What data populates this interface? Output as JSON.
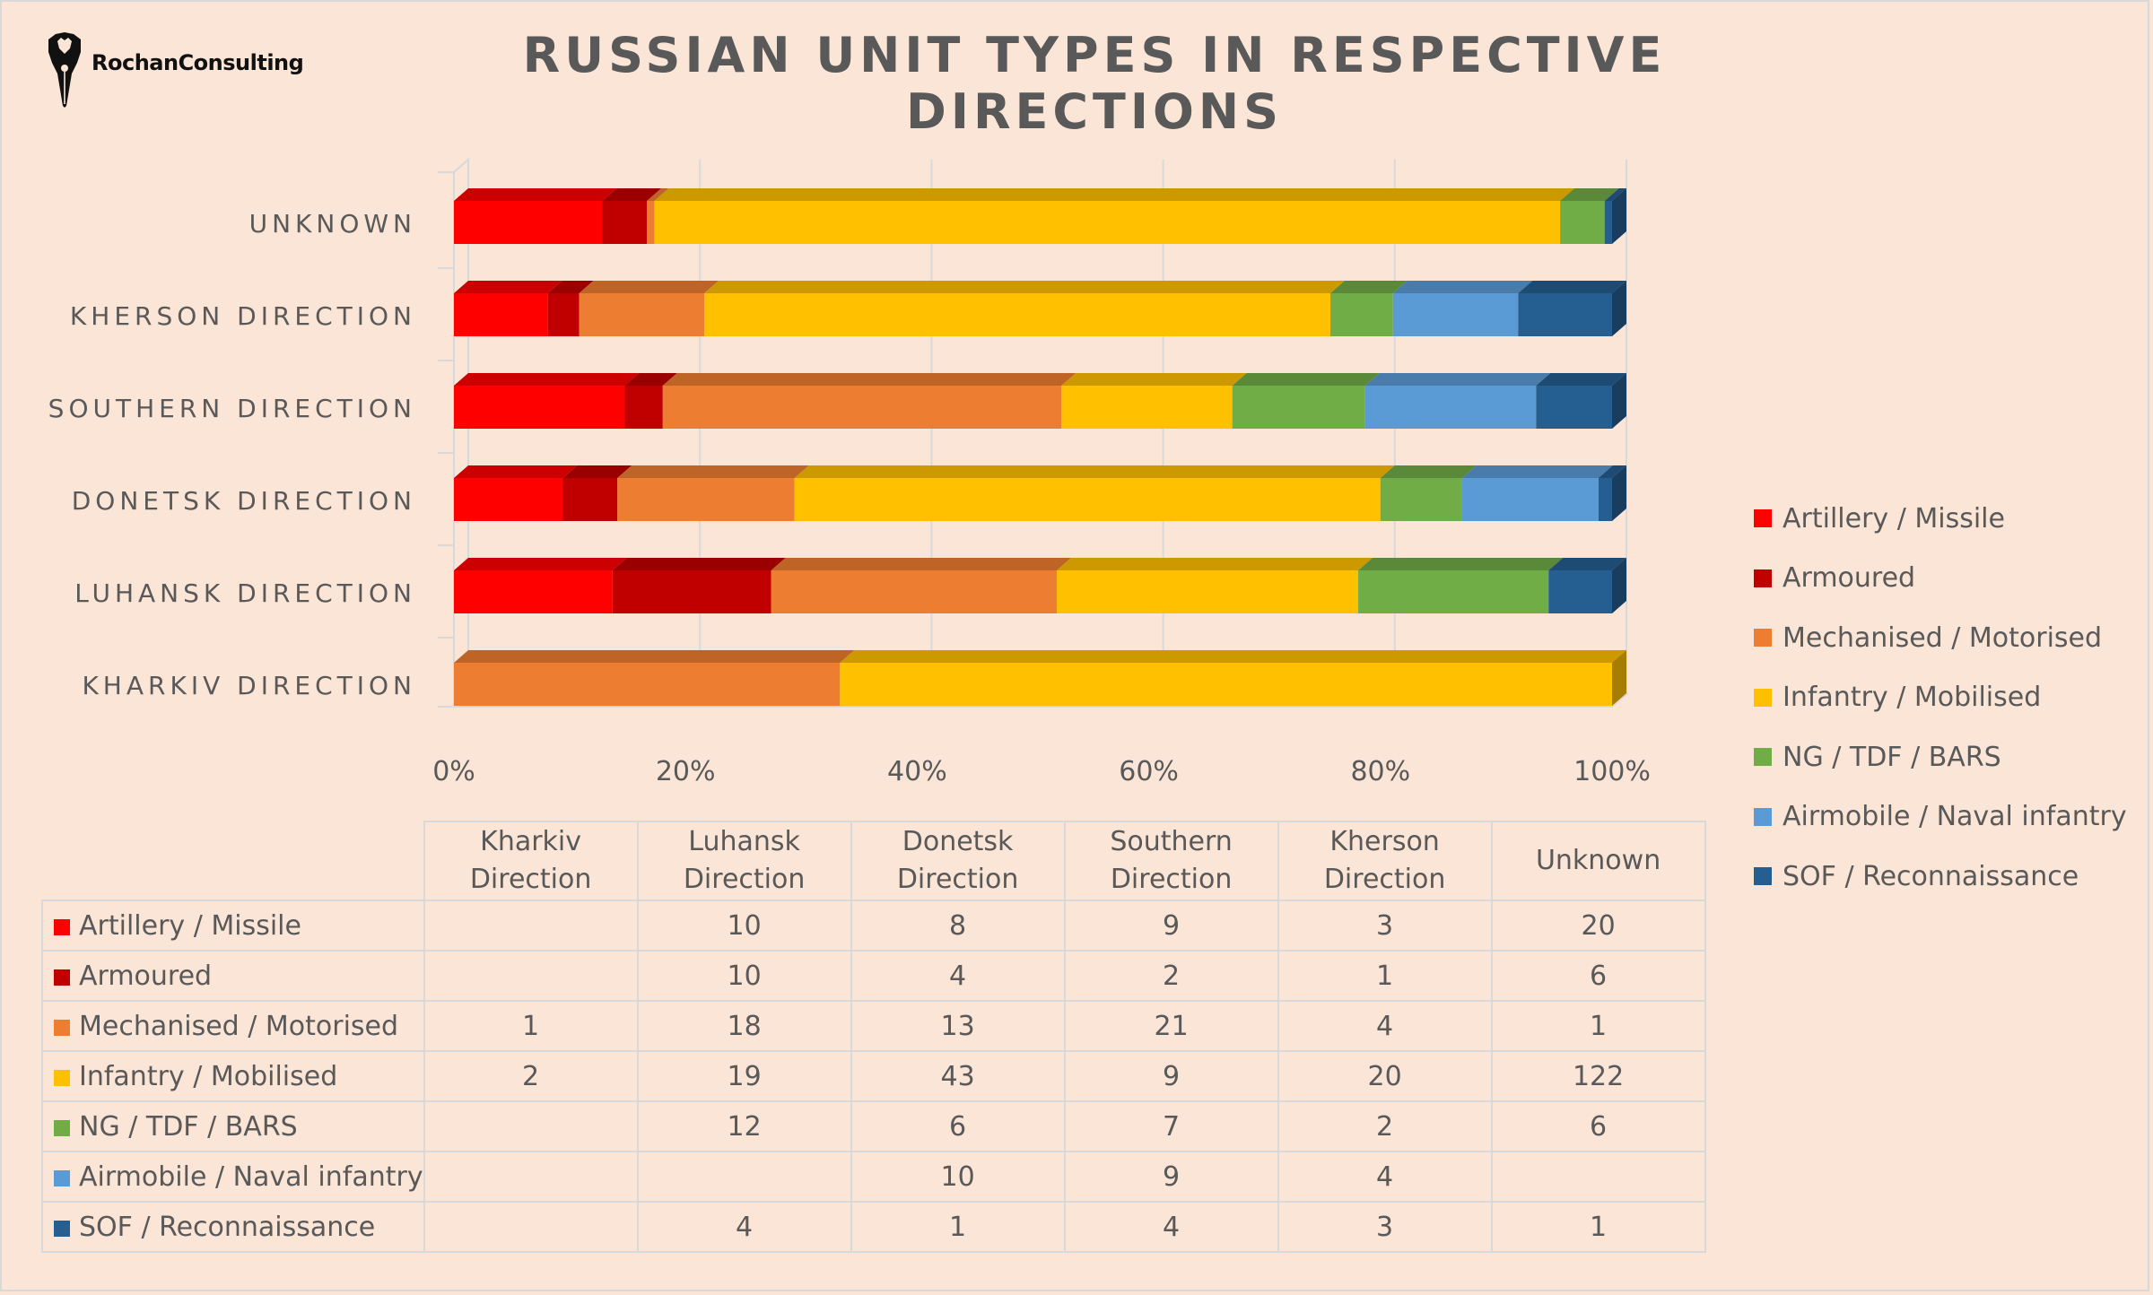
{
  "logo": {
    "text": "RochanConsulting"
  },
  "title": "RUSSIAN UNIT TYPES IN RESPECTIVE DIRECTIONS",
  "series_meta": [
    {
      "name": "Artillery / Missile",
      "color": "#ff0000"
    },
    {
      "name": "Armoured",
      "color": "#c00000"
    },
    {
      "name": "Mechanised / Motorised",
      "color": "#ed7d31"
    },
    {
      "name": "Infantry / Mobilised",
      "color": "#ffc000"
    },
    {
      "name": "NG / TDF / BARS",
      "color": "#70ad47"
    },
    {
      "name": "Airmobile / Naval infantry",
      "color": "#5b9bd5"
    },
    {
      "name": "SOF / Reconnaissance",
      "color": "#255e91"
    }
  ],
  "chart_data": {
    "type": "bar",
    "orientation": "horizontal",
    "stacking": "percent",
    "title": "RUSSIAN UNIT TYPES IN RESPECTIVE DIRECTIONS",
    "categories": [
      "KHARKIV DIRECTION",
      "LUHANSK DIRECTION",
      "DONETSK DIRECTION",
      "SOUTHERN DIRECTION",
      "KHERSON DIRECTION",
      "UNKNOWN"
    ],
    "table_headers": [
      "Kharkiv Direction",
      "Luhansk Direction",
      "Donetsk Direction",
      "Southern Direction",
      "Kherson Direction",
      "Unknown"
    ],
    "series": [
      {
        "name": "Artillery / Missile",
        "values": [
          null,
          10,
          8,
          9,
          3,
          20
        ]
      },
      {
        "name": "Armoured",
        "values": [
          null,
          10,
          4,
          2,
          1,
          6
        ]
      },
      {
        "name": "Mechanised / Motorised",
        "values": [
          1,
          18,
          13,
          21,
          4,
          1
        ]
      },
      {
        "name": "Infantry / Mobilised",
        "values": [
          2,
          19,
          43,
          9,
          20,
          122
        ]
      },
      {
        "name": "NG / TDF / BARS",
        "values": [
          null,
          12,
          6,
          7,
          2,
          6
        ]
      },
      {
        "name": "Airmobile / Naval infantry",
        "values": [
          null,
          null,
          10,
          9,
          4,
          null
        ]
      },
      {
        "name": "SOF / Reconnaissance",
        "values": [
          null,
          4,
          1,
          4,
          3,
          1
        ]
      }
    ],
    "xticks": [
      "0%",
      "20%",
      "40%",
      "60%",
      "80%",
      "100%"
    ],
    "xlim": [
      0,
      1
    ],
    "grid": true,
    "legend_position": "right",
    "data_table": true
  }
}
